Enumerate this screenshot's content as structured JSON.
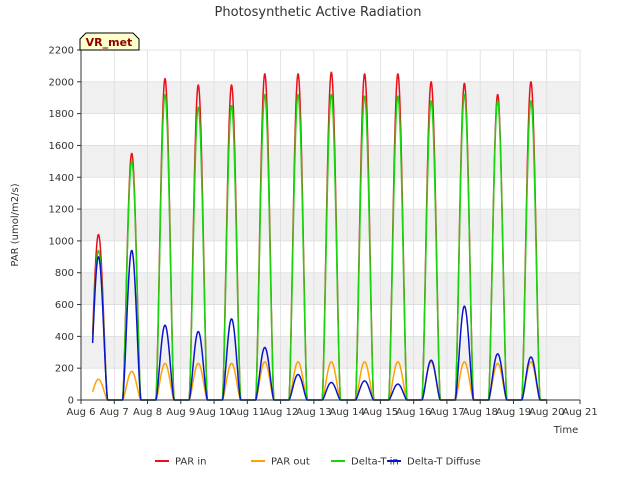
{
  "chart_data": {
    "type": "line",
    "title": "Photosynthetic Active Radiation",
    "xlabel": "Time",
    "ylabel": "PAR (umol/m2/s)",
    "site_label": "VR_met",
    "xlim": [
      6,
      21
    ],
    "ylim": [
      0,
      2200
    ],
    "x_ticks": [
      6,
      7,
      8,
      9,
      10,
      11,
      12,
      13,
      14,
      15,
      16,
      17,
      18,
      19,
      20,
      21
    ],
    "x_tick_labels": [
      "Aug 6",
      "Aug 7",
      "Aug 8",
      "Aug 9",
      "Aug 10",
      "Aug 11",
      "Aug 12",
      "Aug 13",
      "Aug 14",
      "Aug 15",
      "Aug 16",
      "Aug 17",
      "Aug 18",
      "Aug 19",
      "Aug 20",
      "Aug 21"
    ],
    "y_ticks": [
      0,
      200,
      400,
      600,
      800,
      1000,
      1200,
      1400,
      1600,
      1800,
      2000,
      2200
    ],
    "y_tick_labels": [
      "0",
      "200",
      "400",
      "600",
      "800",
      "1000",
      "1200",
      "1400",
      "1600",
      "1800",
      "2000",
      "2200"
    ],
    "grid": true,
    "legend_position": "bottom",
    "days": [
      6,
      7,
      8,
      9,
      10,
      11,
      12,
      13,
      14,
      15,
      16,
      17,
      18,
      19
    ],
    "series": [
      {
        "name": "PAR in",
        "color": "#e8111a",
        "daily_peaks": [
          1040,
          1550,
          2020,
          1980,
          1980,
          2050,
          2050,
          2060,
          2050,
          2050,
          2000,
          1990,
          1920,
          2000
        ]
      },
      {
        "name": "PAR out",
        "color": "#ffa200",
        "daily_peaks": [
          130,
          180,
          230,
          230,
          230,
          240,
          240,
          240,
          240,
          240,
          240,
          240,
          230,
          240
        ]
      },
      {
        "name": "Delta-T in",
        "color": "#1bd40d",
        "daily_peaks": [
          940,
          1500,
          1920,
          1840,
          1850,
          1920,
          1920,
          1920,
          1910,
          1910,
          1880,
          1920,
          1880,
          1880
        ]
      },
      {
        "name": "Delta-T Diffuse",
        "color": "#0a16cc",
        "daily_peaks": [
          900,
          940,
          470,
          430,
          510,
          330,
          160,
          110,
          120,
          100,
          250,
          590,
          290,
          270
        ]
      }
    ]
  }
}
